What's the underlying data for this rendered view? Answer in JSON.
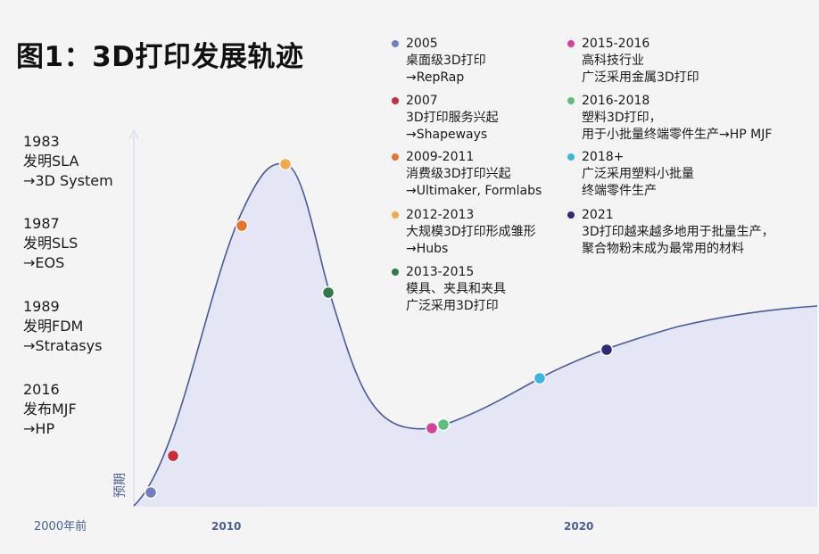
{
  "title": "图1：3D打印发展轨迹",
  "left_notes": [
    {
      "year": "1983",
      "event": "发明SLA",
      "company": "→3D System"
    },
    {
      "year": "1987",
      "event": "发明SLS",
      "company": "→EOS"
    },
    {
      "year": "1989",
      "event": "发明FDM",
      "company": "→Stratasys"
    },
    {
      "year": "2016",
      "event": "发布MJF",
      "company": "→HP"
    }
  ],
  "legend": [
    {
      "period": "2005",
      "lines": [
        "桌面级3D打印",
        "→RepRap"
      ],
      "color": "#6f7fc6"
    },
    {
      "period": "2007",
      "lines": [
        "3D打印服务兴起",
        "→Shapeways"
      ],
      "color": "#cc2b3b"
    },
    {
      "period": "2009-2011",
      "lines": [
        "消费级3D打印兴起",
        "→Ultimaker, Formlabs"
      ],
      "color": "#e8742b"
    },
    {
      "period": "2012-2013",
      "lines": [
        "大规模3D打印形成雏形",
        "→Hubs"
      ],
      "color": "#f4a84a"
    },
    {
      "period": "2013-2015",
      "lines": [
        "模具、夹具和夹具",
        "广泛采用3D打印"
      ],
      "color": "#2f7a4a"
    },
    {
      "period": "2015-2016",
      "lines": [
        "高科技行业",
        "广泛采用金属3D打印"
      ],
      "color": "#d8409a"
    },
    {
      "period": "2016-2018",
      "lines": [
        "塑料3D打印，",
        "用于小批量终端零件生产→HP MJF"
      ],
      "color": "#5cc07a"
    },
    {
      "period": "2018+",
      "lines": [
        "广泛采用塑料小批量",
        "终端零件生产"
      ],
      "color": "#3cb4e6"
    },
    {
      "period": "2021",
      "lines": [
        "3D打印越来越多地用于批量生产，",
        "聚合物粉末成为最常用的材料"
      ],
      "color": "#2e2a7a"
    }
  ],
  "chart_data": {
    "type": "area",
    "title": "图1：3D打印发展轨迹",
    "ylabel": "预期",
    "x_tick_labels": [
      "2000年前",
      "2010",
      "2020"
    ],
    "grid": false,
    "curve_shape": "hype-cycle",
    "points": [
      {
        "label": "2005",
        "color": "#6f7fc6"
      },
      {
        "label": "2007",
        "color": "#cc2b3b"
      },
      {
        "label": "2009-2011",
        "color": "#e8742b"
      },
      {
        "label": "2012-2013",
        "color": "#f4a84a"
      },
      {
        "label": "2013-2015",
        "color": "#2f7a4a"
      },
      {
        "label": "2015-2016",
        "color": "#d8409a"
      },
      {
        "label": "2016-2018",
        "color": "#5cc07a"
      },
      {
        "label": "2018+",
        "color": "#3cb4e6"
      },
      {
        "label": "2021",
        "color": "#2e2a7a"
      }
    ]
  }
}
